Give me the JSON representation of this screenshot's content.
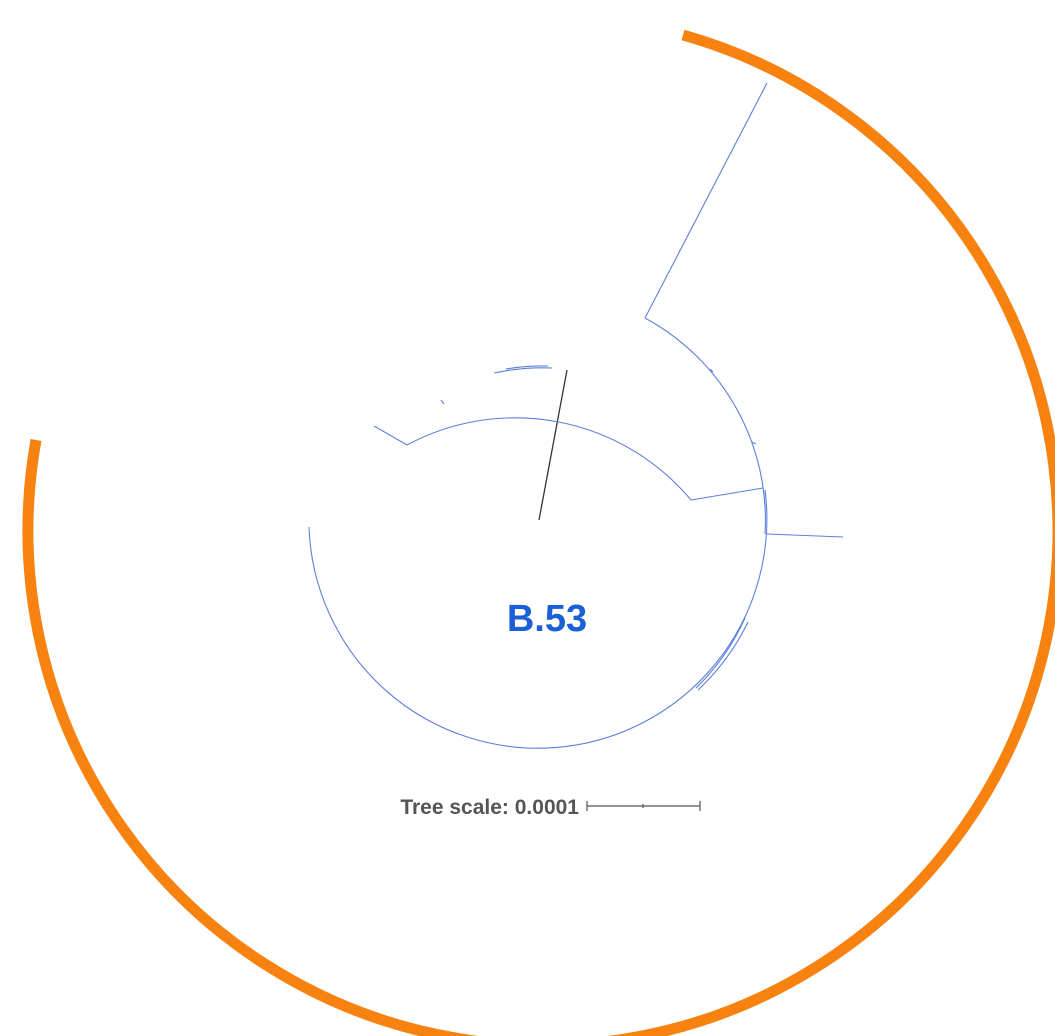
{
  "tree": {
    "clade_label": "B.53",
    "scale_label": "Tree scale: 0.0001",
    "colors": {
      "ring": "#f7820f",
      "branch": "#5b7fdc",
      "root": "#333333",
      "label": "#1a5ed8",
      "scale_text": "#555555"
    }
  }
}
